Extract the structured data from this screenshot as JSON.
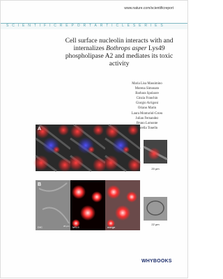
{
  "header": {
    "url": "www.nature.com/scientificreport",
    "series": "SCIENTIFICREPORTARTICLESERIES"
  },
  "title": {
    "before": "Cell surface nucleolin interacts with and internalizes ",
    "italic": "Bothrops asper",
    "after": " Lys49 phospholipase A2 and mediates its toxic activity"
  },
  "authors": [
    "Maria Lisa Massimino",
    "Morena Simonato",
    "Barbara Spolaore",
    "Cinzia Franchin",
    "Giorgio Arrigoni",
    "Oriano Marin",
    "Laura Monturiol-Gross",
    "Julian Fernandez",
    "Bruno Lomonte",
    "Fiorella Tonello"
  ],
  "figure": {
    "panel_a": "A",
    "panel_b": "B",
    "scale_a": "20 μm",
    "scale_b": "22 μm",
    "label_dic": "DIC",
    "label_scale": "20 μm",
    "label_ms": "MS-II",
    "label_merge": "merge"
  },
  "publisher": "WHYBOOKS"
}
